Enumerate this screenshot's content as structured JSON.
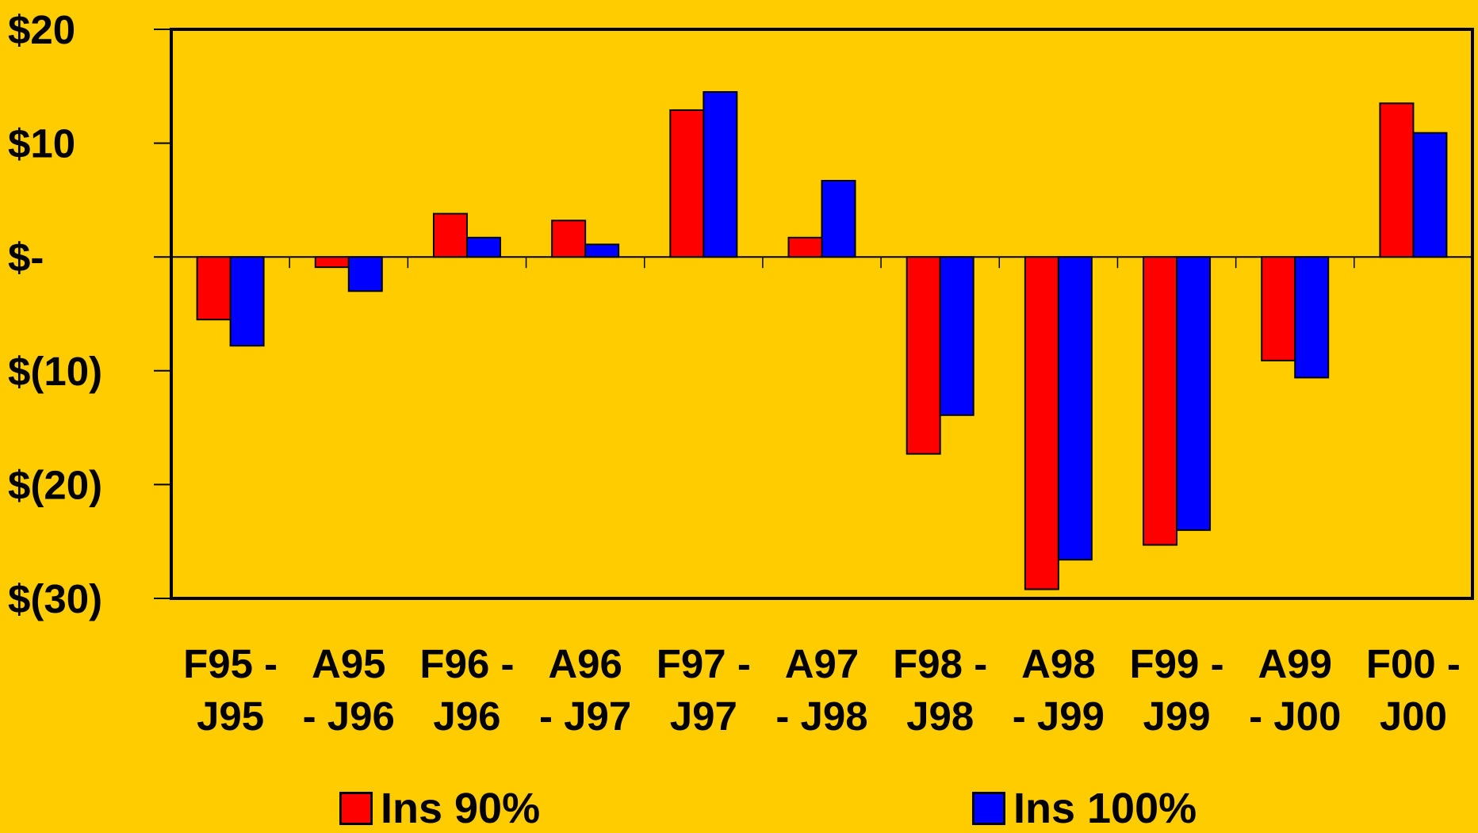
{
  "chart_data": {
    "type": "bar",
    "categories": [
      [
        "F95 -",
        "J95"
      ],
      [
        "A95",
        "- J96"
      ],
      [
        "F96 -",
        "J96"
      ],
      [
        "A96",
        "- J97"
      ],
      [
        "F97 -",
        "J97"
      ],
      [
        "A97",
        "- J98"
      ],
      [
        "F98 -",
        "J98"
      ],
      [
        "A98",
        "- J99"
      ],
      [
        "F99 -",
        "J99"
      ],
      [
        "A99",
        "- J00"
      ],
      [
        "F00 -",
        "J00"
      ]
    ],
    "series": [
      {
        "name": "Ins 90%",
        "color": "#FF0000",
        "values": [
          -5.5,
          -0.9,
          3.8,
          3.2,
          12.9,
          1.7,
          -17.3,
          -29.2,
          -25.3,
          -9.1,
          13.5
        ]
      },
      {
        "name": "Ins 100%",
        "color": "#0000FF",
        "values": [
          -7.8,
          -3.0,
          1.7,
          1.1,
          14.5,
          6.7,
          -13.9,
          -26.6,
          -24.0,
          -10.6,
          10.9
        ]
      }
    ],
    "y_ticks": [
      {
        "value": 20,
        "label": "$20"
      },
      {
        "value": 10,
        "label": "$10"
      },
      {
        "value": 0,
        "label": "$-"
      },
      {
        "value": -10,
        "label": "$(10)"
      },
      {
        "value": -20,
        "label": "$(20)"
      },
      {
        "value": -30,
        "label": "$(30)"
      }
    ],
    "ylim": [
      -30,
      20
    ],
    "grid": false,
    "legend_position": "bottom",
    "title": "",
    "xlabel": "",
    "ylabel": ""
  },
  "colors": {
    "background": "#FFCC00",
    "plot_background": "#FFCC00",
    "axis": "#000000"
  }
}
